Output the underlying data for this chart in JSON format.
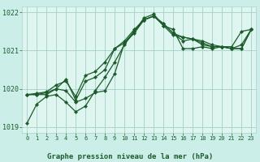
{
  "title": "Graphe pression niveau de la mer (hPa)",
  "bg_color": "#cceee8",
  "plot_bg_color": "#dff5f0",
  "grid_color": "#aad4cc",
  "line_color": "#1a5c2a",
  "marker_color": "#1a5c2a",
  "ylim": [
    1018.85,
    1022.15
  ],
  "xlim": [
    -0.5,
    23.5
  ],
  "yticks": [
    1019,
    1020,
    1021,
    1022
  ],
  "xticks": [
    0,
    1,
    2,
    3,
    4,
    5,
    6,
    7,
    8,
    9,
    10,
    11,
    12,
    13,
    14,
    15,
    16,
    17,
    18,
    19,
    20,
    21,
    22,
    23
  ],
  "series": [
    [
      1019.1,
      1019.6,
      1019.8,
      1019.85,
      1019.65,
      1019.4,
      1019.55,
      1019.95,
      1020.3,
      1020.7,
      1021.15,
      1021.5,
      1021.85,
      1021.95,
      1021.65,
      1021.55,
      1021.05,
      1021.05,
      1021.1,
      1021.05,
      1021.1,
      1021.1,
      1021.5,
      1021.55
    ],
    [
      1019.85,
      1019.85,
      1019.85,
      1020.0,
      1019.95,
      1019.65,
      1019.75,
      1019.9,
      1019.95,
      1020.4,
      1021.2,
      1021.5,
      1021.8,
      1021.9,
      1021.7,
      1021.45,
      1021.35,
      1021.3,
      1021.2,
      1021.1,
      1021.1,
      1021.05,
      1021.05,
      1021.55
    ],
    [
      1019.85,
      1019.85,
      1019.9,
      1020.0,
      1020.25,
      1019.7,
      1020.2,
      1020.3,
      1020.5,
      1021.05,
      1021.2,
      1021.45,
      1021.8,
      1021.9,
      1021.65,
      1021.4,
      1021.35,
      1021.3,
      1021.15,
      1021.1,
      1021.1,
      1021.05,
      1021.05,
      1021.55
    ],
    [
      1019.85,
      1019.88,
      1019.92,
      1020.1,
      1020.2,
      1019.8,
      1020.35,
      1020.45,
      1020.7,
      1021.05,
      1021.25,
      1021.55,
      1021.8,
      1021.9,
      1021.7,
      1021.45,
      1021.25,
      1021.3,
      1021.25,
      1021.15,
      1021.1,
      1021.05,
      1021.15,
      1021.55
    ]
  ]
}
